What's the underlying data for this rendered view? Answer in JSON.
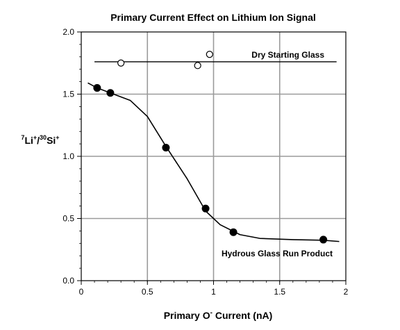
{
  "chart_data": {
    "type": "scatter",
    "title": "Primary Current Effect on Lithium Ion Signal",
    "xlabel": {
      "main": "Primary O",
      "sup": "-",
      "rest": " Current (nA)"
    },
    "ylabel": {
      "sup1": "7",
      "base1": "Li",
      "sup2": "+",
      "slash": "/",
      "sup3": "30",
      "base2": "Si",
      "sup4": "+"
    },
    "xlim": [
      0,
      2
    ],
    "ylim": [
      0,
      2
    ],
    "xticks": [
      0,
      0.5,
      1,
      1.5,
      2
    ],
    "xtick_labels": [
      "0",
      "0.5",
      "1",
      "1.5",
      "2"
    ],
    "yticks": [
      0,
      0.5,
      1,
      1.5,
      2
    ],
    "ytick_labels": [
      "0.0",
      "0.5",
      "1.0",
      "1.5",
      "2.0"
    ],
    "grid": true,
    "series": [
      {
        "name": "Dry Starting Glass",
        "marker": "open-circle",
        "points": [
          {
            "x": 0.3,
            "y": 1.75
          },
          {
            "x": 0.88,
            "y": 1.73
          },
          {
            "x": 0.97,
            "y": 1.82
          }
        ],
        "reference_line": {
          "x": [
            0.1,
            1.93
          ],
          "y": 1.76
        }
      },
      {
        "name": "Hydrous Glass Run Product",
        "marker": "filled-circle",
        "points": [
          {
            "x": 0.12,
            "y": 1.55
          },
          {
            "x": 0.22,
            "y": 1.51
          },
          {
            "x": 0.64,
            "y": 1.07
          },
          {
            "x": 0.94,
            "y": 0.58
          },
          {
            "x": 1.15,
            "y": 0.39
          },
          {
            "x": 1.83,
            "y": 0.33
          }
        ],
        "fit_curve": {
          "x": [
            0.05,
            0.12,
            0.22,
            0.37,
            0.5,
            0.64,
            0.8,
            0.94,
            1.05,
            1.2,
            1.35,
            1.6,
            1.83,
            1.95
          ],
          "y": [
            1.59,
            1.55,
            1.51,
            1.45,
            1.32,
            1.08,
            0.82,
            0.56,
            0.45,
            0.37,
            0.34,
            0.33,
            0.325,
            0.315
          ]
        }
      }
    ]
  }
}
